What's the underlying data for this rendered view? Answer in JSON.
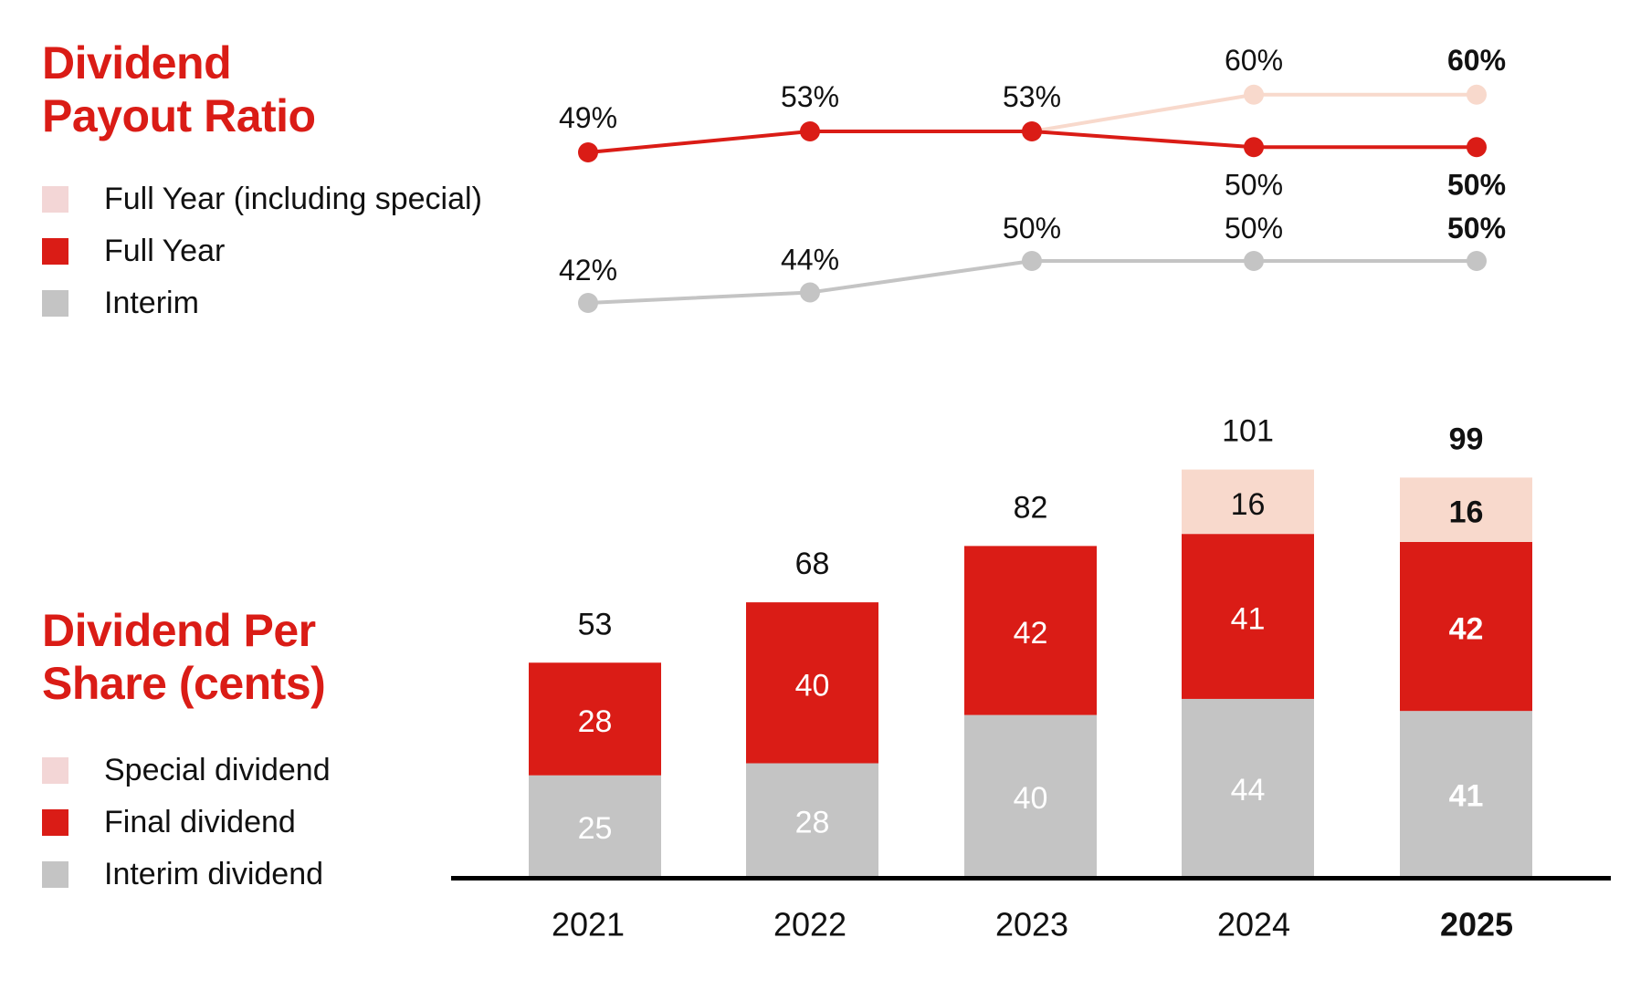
{
  "colors": {
    "full_year": "#DA1C16",
    "special": "#F8D9CC",
    "special_legend": "#F3D6D6",
    "interim": "#C4C4C4",
    "axis": "#000000",
    "text": "#111111",
    "title": "#DA1C16"
  },
  "payout_section": {
    "title_lines": [
      "Dividend",
      "Payout Ratio"
    ],
    "legend": [
      {
        "label": "Full Year (including special)",
        "series": "special"
      },
      {
        "label": "Full Year",
        "series": "full_year"
      },
      {
        "label": "Interim",
        "series": "interim"
      }
    ]
  },
  "dps_section": {
    "title_lines": [
      "Dividend Per",
      "Share (cents)"
    ],
    "legend": [
      {
        "label": "Special dividend",
        "series": "special"
      },
      {
        "label": "Final dividend",
        "series": "full_year"
      },
      {
        "label": "Interim dividend",
        "series": "interim"
      }
    ]
  },
  "chart_data": [
    {
      "type": "line",
      "title": "Dividend Payout Ratio",
      "x": [
        "2021",
        "2022",
        "2023",
        "2024",
        "2025"
      ],
      "highlight_category": "2025",
      "unit": "%",
      "series": [
        {
          "name": "Full Year (including special)",
          "key": "special",
          "values": [
            null,
            null,
            53,
            60,
            60
          ],
          "labels": [
            null,
            null,
            null,
            "60%",
            "60%"
          ],
          "label_position": "above"
        },
        {
          "name": "Full Year",
          "key": "full_year",
          "values": [
            49,
            53,
            53,
            50,
            50
          ],
          "labels": [
            "49%",
            "53%",
            "53%",
            "50%",
            "50%"
          ],
          "label_position": [
            "above",
            "above",
            "above",
            "below",
            "below"
          ]
        },
        {
          "name": "Interim",
          "key": "interim",
          "values": [
            42,
            44,
            50,
            50,
            50
          ],
          "labels": [
            "42%",
            "44%",
            "50%",
            "50%",
            "50%"
          ],
          "label_position": "above"
        }
      ],
      "grid": false,
      "legend": "left"
    },
    {
      "type": "bar",
      "stacked": true,
      "title": "Dividend Per Share (cents)",
      "categories": [
        "2021",
        "2022",
        "2023",
        "2024",
        "2025"
      ],
      "highlight_category": "2025",
      "series": [
        {
          "name": "Interim dividend",
          "key": "interim",
          "values": [
            25,
            28,
            40,
            44,
            41
          ]
        },
        {
          "name": "Final dividend",
          "key": "full_year",
          "values": [
            28,
            40,
            42,
            41,
            42
          ]
        },
        {
          "name": "Special dividend",
          "key": "special",
          "values": [
            0,
            0,
            0,
            16,
            16
          ]
        }
      ],
      "totals": [
        53,
        68,
        82,
        101,
        99
      ],
      "xlabel": "",
      "ylabel": "",
      "ylim": [
        0,
        101
      ],
      "grid": false,
      "legend": "left"
    }
  ]
}
